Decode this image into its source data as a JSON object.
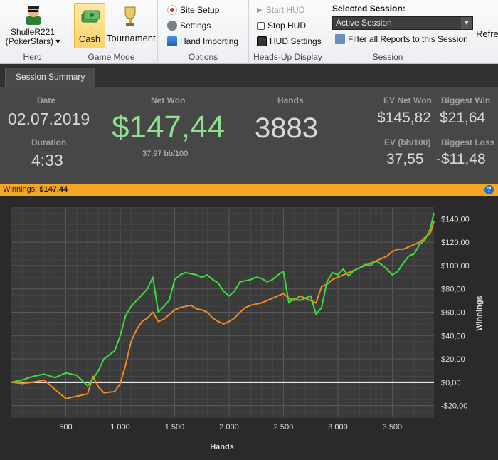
{
  "ribbon": {
    "hero": {
      "name_line1": "ShulleR221",
      "name_line2": "(PokerStars) ▾",
      "group_label": "Hero"
    },
    "game_mode": {
      "cash_label": "Cash",
      "tournament_label": "Tournament",
      "group_label": "Game Mode"
    },
    "options": {
      "site_setup": "Site Setup",
      "settings": "Settings",
      "hand_importing": "Hand Importing",
      "group_label": "Options"
    },
    "hud": {
      "start_hud": "Start HUD",
      "stop_hud": "Stop HUD",
      "hud_settings": "HUD Settings",
      "group_label": "Heads-Up Display"
    },
    "session": {
      "title": "Selected Session:",
      "selected": "Active Session",
      "filter_label": "Filter all Reports to this Session",
      "refresh_label": "Refres",
      "group_label": "Session"
    }
  },
  "tab": {
    "label": "Session Summary"
  },
  "summary": {
    "date_label": "Date",
    "date_value": "02.07.2019",
    "duration_label": "Duration",
    "duration_value": "4:33",
    "net_won_label": "Net Won",
    "net_won_value": "$147,44",
    "net_won_sub": "37,97 bb/100",
    "hands_label": "Hands",
    "hands_value": "3883",
    "ev_net_won_label": "EV Net Won",
    "ev_net_won_value": "$145,82",
    "biggest_win_label": "Biggest Win",
    "biggest_win_value": "$21,64",
    "ev_bb_label": "EV (bb/100)",
    "ev_bb_value": "37,55",
    "biggest_loss_label": "Biggest Loss",
    "biggest_loss_value": "-$11,48"
  },
  "winnings_bar": {
    "label": "Winnings:",
    "value": "$147,44",
    "help": "?"
  },
  "colors": {
    "accent": "#f5a623",
    "green_series": "#3ddc3d",
    "orange_series": "#f08a24",
    "net_won": "#8ee08e"
  },
  "chart_data": {
    "type": "line",
    "xlabel": "Hands",
    "ylabel": "Winnings",
    "xlim": [
      0,
      3883
    ],
    "ylim": [
      -30,
      150
    ],
    "x_ticks": [
      500,
      1000,
      1500,
      2000,
      2500,
      3000,
      3500
    ],
    "x_tick_labels": [
      "500",
      "1 000",
      "1 500",
      "2 000",
      "2 500",
      "3 000",
      "3 500"
    ],
    "y_ticks": [
      -20,
      0,
      20,
      40,
      60,
      80,
      100,
      120,
      140
    ],
    "y_tick_labels": [
      "-$20,00",
      "$0,00",
      "$20,00",
      "$40,00",
      "$60,00",
      "$80,00",
      "$100,00",
      "$120,00",
      "$140,00"
    ],
    "grid": true,
    "series": [
      {
        "color": "#3ddc3d",
        "x": [
          0,
          100,
          200,
          300,
          400,
          500,
          600,
          700,
          750,
          800,
          850,
          950,
          1000,
          1050,
          1100,
          1150,
          1200,
          1250,
          1300,
          1350,
          1400,
          1450,
          1500,
          1550,
          1600,
          1650,
          1700,
          1750,
          1800,
          1850,
          1900,
          1950,
          2000,
          2050,
          2100,
          2150,
          2200,
          2250,
          2300,
          2350,
          2400,
          2450,
          2500,
          2550,
          2600,
          2650,
          2700,
          2750,
          2800,
          2850,
          2900,
          2950,
          3000,
          3050,
          3100,
          3150,
          3200,
          3250,
          3300,
          3350,
          3400,
          3450,
          3500,
          3550,
          3600,
          3650,
          3700,
          3750,
          3800,
          3850,
          3883
        ],
        "y": [
          0,
          2,
          5,
          7,
          4,
          8,
          6,
          -3,
          3,
          10,
          20,
          27,
          40,
          57,
          65,
          70,
          75,
          80,
          90,
          60,
          65,
          70,
          88,
          92,
          94,
          93,
          92,
          90,
          92,
          88,
          85,
          78,
          74,
          78,
          86,
          87,
          88,
          90,
          89,
          86,
          88,
          92,
          95,
          68,
          72,
          70,
          72,
          74,
          58,
          64,
          86,
          94,
          92,
          97,
          91,
          96,
          98,
          101,
          100,
          104,
          101,
          97,
          92,
          95,
          102,
          108,
          110,
          118,
          122,
          132,
          145
        ]
      },
      {
        "color": "#f08a24",
        "x": [
          0,
          100,
          200,
          300,
          400,
          500,
          600,
          700,
          750,
          800,
          850,
          950,
          1000,
          1050,
          1100,
          1150,
          1200,
          1250,
          1300,
          1350,
          1400,
          1450,
          1500,
          1550,
          1600,
          1650,
          1700,
          1750,
          1800,
          1850,
          1900,
          1950,
          2000,
          2050,
          2100,
          2150,
          2200,
          2250,
          2300,
          2350,
          2400,
          2450,
          2500,
          2550,
          2600,
          2650,
          2700,
          2750,
          2800,
          2850,
          2900,
          2950,
          3000,
          3050,
          3100,
          3150,
          3200,
          3250,
          3300,
          3350,
          3400,
          3450,
          3500,
          3550,
          3600,
          3650,
          3700,
          3750,
          3800,
          3850,
          3883
        ],
        "y": [
          0,
          -1,
          0,
          2,
          -6,
          -14,
          -12,
          -10,
          5,
          -4,
          -9,
          -8,
          -1,
          15,
          35,
          45,
          52,
          55,
          60,
          52,
          54,
          58,
          62,
          64,
          65,
          66,
          63,
          62,
          60,
          55,
          52,
          50,
          52,
          55,
          60,
          64,
          66,
          67,
          68,
          70,
          72,
          74,
          76,
          72,
          70,
          74,
          72,
          70,
          68,
          82,
          84,
          88,
          90,
          92,
          94,
          96,
          98,
          100,
          102,
          104,
          106,
          108,
          112,
          114,
          114,
          116,
          118,
          120,
          124,
          128,
          138
        ]
      }
    ]
  }
}
